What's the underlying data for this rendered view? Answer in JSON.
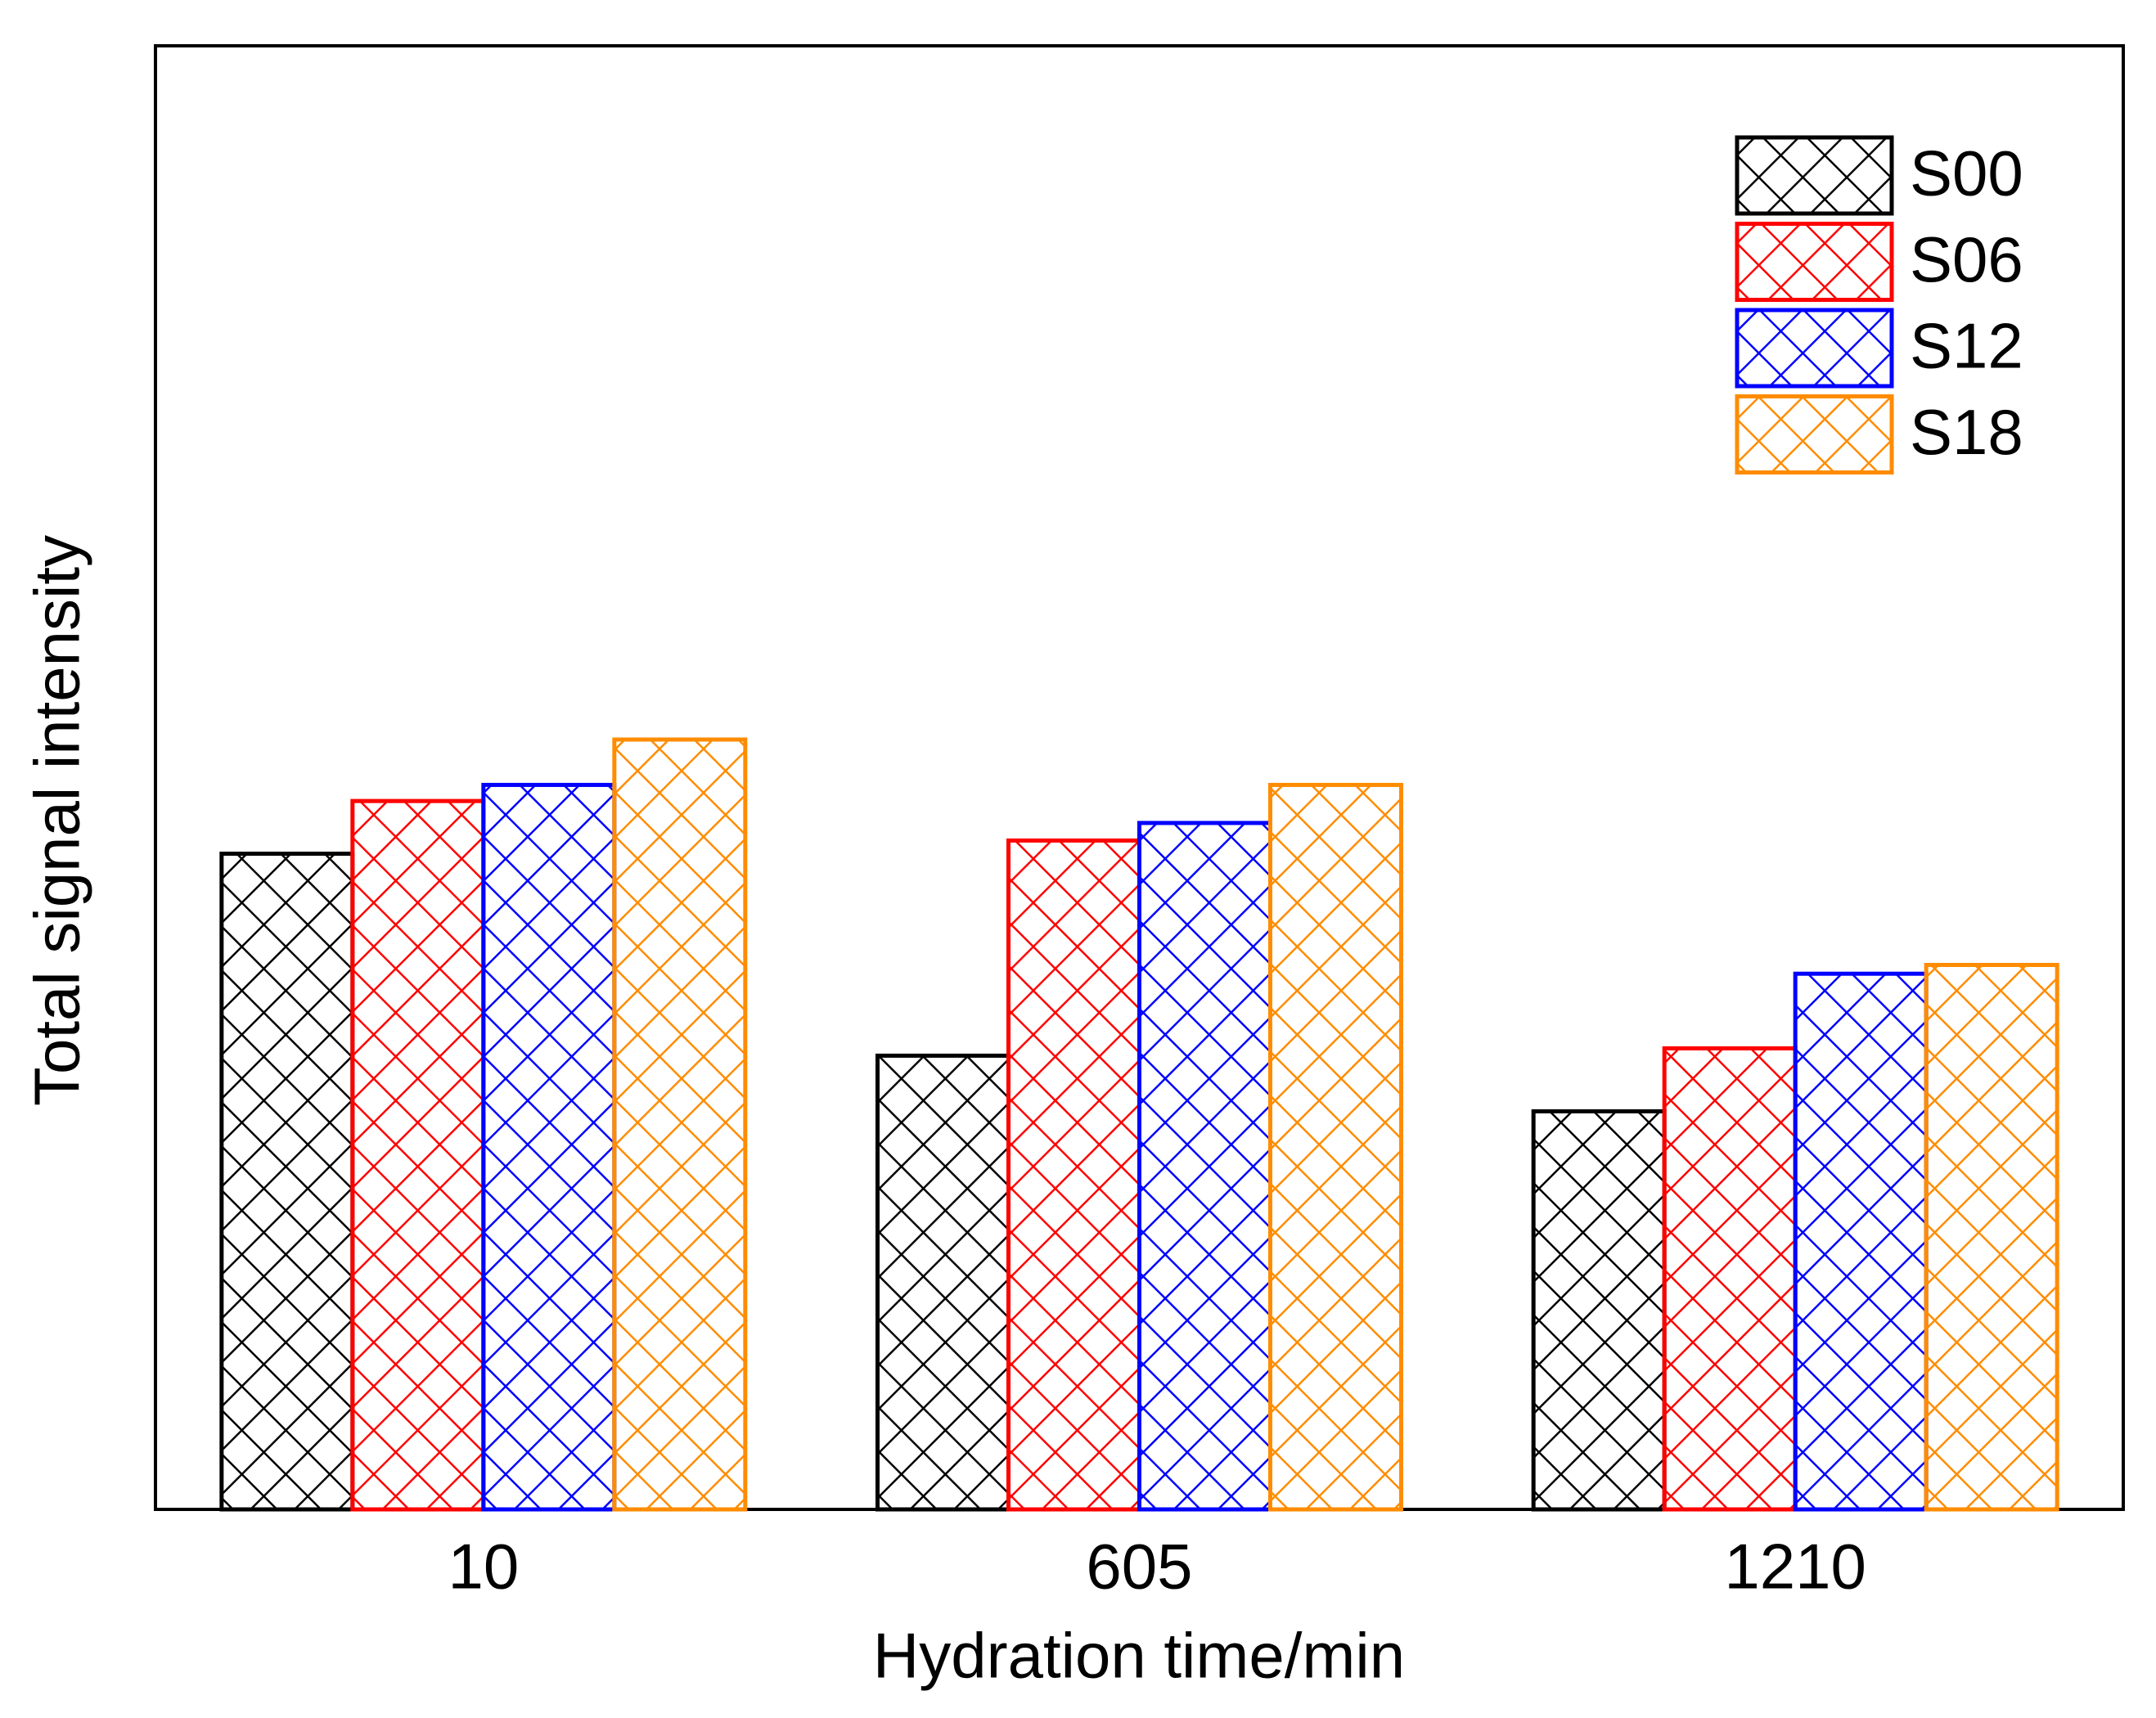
{
  "chart_data": {
    "type": "bar",
    "x_label": "Hydration time/min",
    "y_label": "Total signal intensity",
    "categories": [
      "10",
      "605",
      "1210"
    ],
    "series": [
      {
        "name": "S00",
        "color": "#000000",
        "values": [
          0.448,
          0.31,
          0.272
        ]
      },
      {
        "name": "S06",
        "color": "#ff0000",
        "values": [
          0.484,
          0.457,
          0.315
        ]
      },
      {
        "name": "S12",
        "color": "#0000ff",
        "values": [
          0.495,
          0.469,
          0.366
        ]
      },
      {
        "name": "S18",
        "color": "#ff8c00",
        "values": [
          0.526,
          0.495,
          0.372
        ]
      }
    ],
    "ylim": [
      0,
      1
    ],
    "hatch": "crosshatch",
    "legend": "upper right"
  }
}
